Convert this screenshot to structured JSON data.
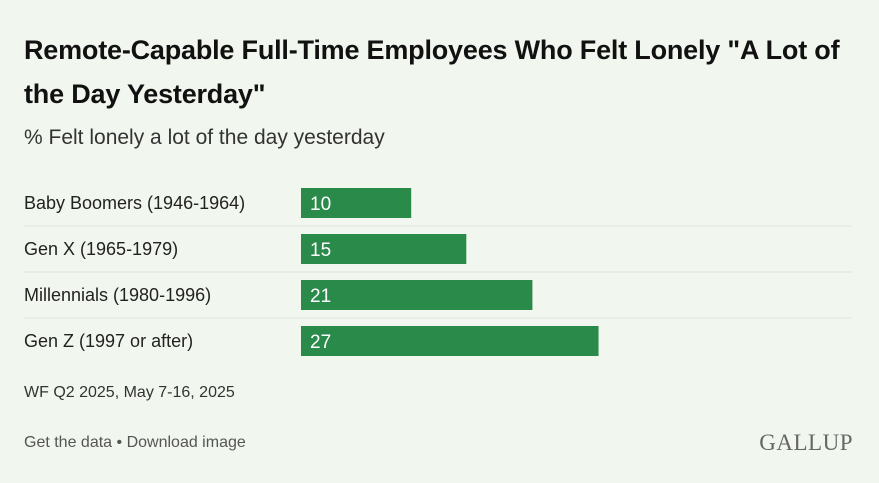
{
  "header": {
    "title": "Remote-Capable Full-Time Employees Who Felt Lonely \"A Lot of the Day Yesterday\"",
    "subtitle": "% Felt lonely a lot of the day yesterday"
  },
  "chart_data": {
    "type": "bar",
    "orientation": "horizontal",
    "title": "Remote-Capable Full-Time Employees Who Felt Lonely \"A Lot of the Day Yesterday\"",
    "subtitle": "% Felt lonely a lot of the day yesterday",
    "categories": [
      "Baby Boomers (1946-1964)",
      "Gen X (1965-1979)",
      "Millennials (1980-1996)",
      "Gen Z (1997 or after)"
    ],
    "values": [
      10,
      15,
      21,
      27
    ],
    "xlim": [
      0,
      50
    ],
    "xlabel": "",
    "ylabel": "",
    "colors": {
      "bar": "#2a8a4a",
      "label_text": "#ffffff",
      "separator": "#dde5da"
    }
  },
  "note": "WF Q2 2025, May 7-16, 2025",
  "footer": {
    "get_data": "Get the data",
    "separator": "•",
    "download": "Download image"
  },
  "logo_text": "GALLUP"
}
